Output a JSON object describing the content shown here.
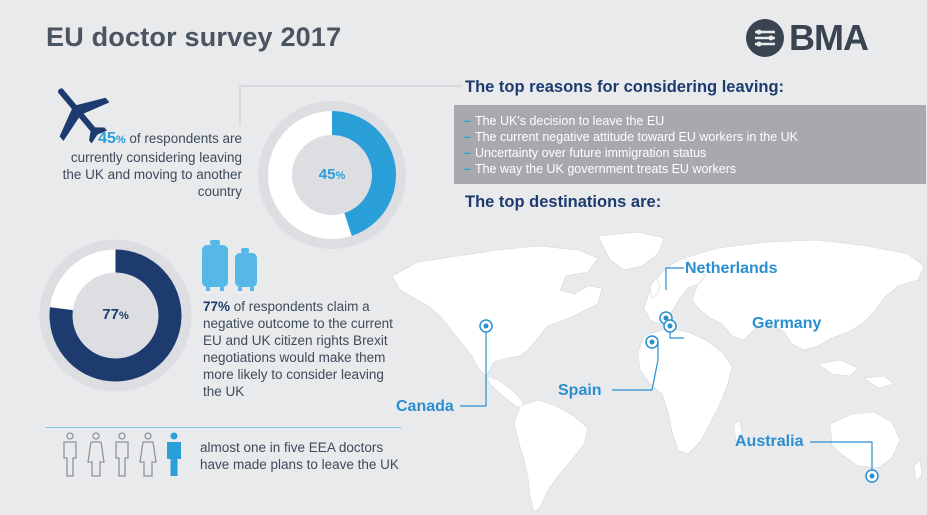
{
  "header": {
    "title": "EU doctor survey 2017",
    "brand": "BMA"
  },
  "stat_leaving": {
    "percent": "45",
    "percent_symbol": "%",
    "text": " of respondents are currently considering leaving the UK and moving to another country",
    "donut_value": 45,
    "donut_label_number": "45",
    "donut_label_symbol": "%"
  },
  "reasons": {
    "heading": "The top reasons for considering leaving:",
    "items": [
      "The UK's decision to leave the EU",
      "The current negative attitude toward EU workers in the UK",
      "Uncertainty over future immigration status",
      "The way the UK government treats EU workers"
    ]
  },
  "destinations": {
    "heading": "The top destinations are:",
    "names": {
      "netherlands": "Netherlands",
      "germany": "Germany",
      "spain": "Spain",
      "canada": "Canada",
      "australia": "Australia"
    }
  },
  "stat_brexit": {
    "percent": "77%",
    "text": " of respondents claim a negative outcome to the current EU and UK citizen rights Brexit negotiations would make them more likely to consider leaving the UK",
    "donut_value": 77,
    "donut_label_number": "77",
    "donut_label_symbol": "%"
  },
  "stat_plans": {
    "text": "almost one in five EEA doctors have made plans to leave the UK",
    "highlighted_of_total": "1 of 5"
  },
  "colors": {
    "navy": "#1d3b6e",
    "blue": "#2a9fd8",
    "grey_box": "#a7a9ac",
    "background": "#e9eaec"
  },
  "icons": [
    "bma-logo-icon",
    "airplane-icon",
    "luggage-icon",
    "person-icon"
  ]
}
